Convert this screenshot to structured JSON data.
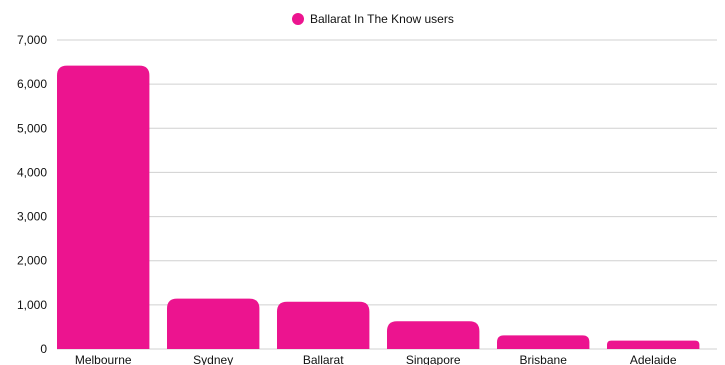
{
  "chart_data": {
    "type": "bar",
    "categories": [
      "Melbourne",
      "Sydney",
      "Ballarat",
      "Singapore",
      "Brisbane",
      "Adelaide"
    ],
    "series": [
      {
        "name": "Ballarat In The Know users",
        "values": [
          6420,
          1140,
          1070,
          630,
          310,
          190
        ]
      }
    ],
    "ylim": [
      0,
      7000
    ],
    "yticks": [
      "0",
      "1,000",
      "2,000",
      "3,000",
      "4,000",
      "5,000",
      "6,000",
      "7,000"
    ],
    "ytick_values": [
      0,
      1000,
      2000,
      3000,
      4000,
      5000,
      6000,
      7000
    ],
    "grid": true,
    "legend_position": "top-center",
    "colors": {
      "bar": "#ec148f",
      "grid": "#d0d0d0",
      "text": "#111111"
    }
  }
}
